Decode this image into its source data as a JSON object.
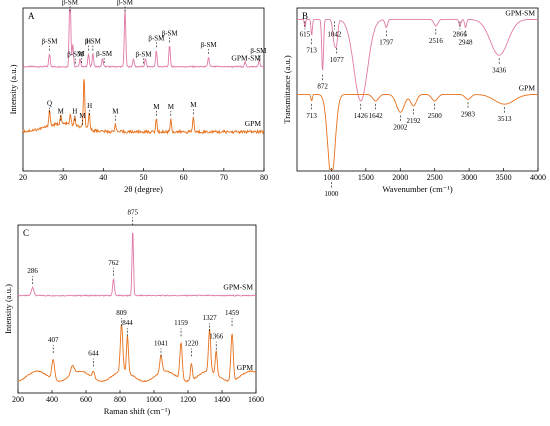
{
  "chart_data": [
    {
      "panel": "A",
      "type": "line",
      "xlabel": "2θ (degree)",
      "ylabel": "Intensity (a.u.)",
      "xlim": [
        20,
        80
      ],
      "xticks": [
        20,
        30,
        40,
        50,
        60,
        70,
        80
      ],
      "colors": {
        "GPM-SM": "#e07aa8",
        "GPM": "#e8701a"
      },
      "series": [
        {
          "name": "GPM-SM",
          "baseline": 0.64,
          "peaks": [
            [
              26.6,
              0.08
            ],
            [
              31.7,
              0.58
            ],
            [
              32.4,
              0.14
            ],
            [
              34.2,
              0.05
            ],
            [
              36.3,
              0.08
            ],
            [
              37.4,
              0.08
            ],
            [
              39.8,
              0.05
            ],
            [
              45.4,
              0.38
            ],
            [
              47.5,
              0.05
            ],
            [
              50.5,
              0.05
            ],
            [
              53.2,
              0.1
            ],
            [
              56.5,
              0.13
            ],
            [
              66.2,
              0.06
            ],
            [
              75.3,
              0.03
            ],
            [
              78.8,
              0.04
            ]
          ]
        },
        {
          "name": "GPM",
          "baseline": 0.24,
          "peaks": [
            [
              26.6,
              0.1
            ],
            [
              29.4,
              0.05
            ],
            [
              31.8,
              0.06
            ],
            [
              32.9,
              0.05
            ],
            [
              35.2,
              0.31
            ],
            [
              36.5,
              0.1
            ],
            [
              43.0,
              0.05
            ],
            [
              53.2,
              0.08
            ],
            [
              56.8,
              0.08
            ],
            [
              62.4,
              0.09
            ]
          ]
        }
      ],
      "annotations": [
        {
          "x": 26.6,
          "label": "β-SM",
          "s": 0
        },
        {
          "x": 31.7,
          "label": "β-SM",
          "s": 0
        },
        {
          "x": 33.0,
          "label": "β-SM",
          "s": 0
        },
        {
          "x": 34.6,
          "label": "M",
          "s": 0
        },
        {
          "x": 36.3,
          "label": "H",
          "s": 0
        },
        {
          "x": 37.4,
          "label": "β-SM",
          "s": 0
        },
        {
          "x": 40.2,
          "label": "β-SM",
          "s": 0
        },
        {
          "x": 45.4,
          "label": "β-SM",
          "s": 0
        },
        {
          "x": 50.0,
          "label": "β-SM",
          "s": 0
        },
        {
          "x": 53.2,
          "label": "β-SM",
          "s": 0
        },
        {
          "x": 56.5,
          "label": "β-SM",
          "s": 0
        },
        {
          "x": 66.2,
          "label": "β-SM",
          "s": 0
        },
        {
          "x": 78.6,
          "label": "β-SM",
          "s": 0
        },
        {
          "x": 26.6,
          "label": "Q",
          "s": 1
        },
        {
          "x": 29.4,
          "label": "M",
          "s": 1
        },
        {
          "x": 32.9,
          "label": "H",
          "s": 1
        },
        {
          "x": 34.8,
          "label": "M",
          "s": 1
        },
        {
          "x": 36.6,
          "label": "H",
          "s": 1
        },
        {
          "x": 43.0,
          "label": "M",
          "s": 1
        },
        {
          "x": 53.2,
          "label": "M",
          "s": 1
        },
        {
          "x": 56.8,
          "label": "M",
          "s": 1
        },
        {
          "x": 62.4,
          "label": "M",
          "s": 1
        }
      ]
    },
    {
      "panel": "B",
      "type": "line",
      "xlabel": "Wavenumber (cm⁻¹)",
      "ylabel": "Transmittance (a.u.)",
      "xlim": [
        500,
        4000
      ],
      "xticks": [
        1000,
        1500,
        2000,
        2500,
        3000,
        3500,
        4000
      ],
      "colors": {
        "GPM-SM": "#e07aa8",
        "GPM": "#e8701a"
      },
      "series": [
        {
          "name": "GPM-SM",
          "baseline": 0.93,
          "dips": [
            [
              615,
              0.05,
              12
            ],
            [
              713,
              0.1,
              14
            ],
            [
              872,
              0.32,
              18
            ],
            [
              1042,
              0.14,
              30
            ],
            [
              1077,
              0.12,
              25
            ],
            [
              1426,
              0.5,
              140
            ],
            [
              1797,
              0.05,
              25
            ],
            [
              2516,
              0.04,
              40
            ],
            [
              2866,
              0.04,
              20
            ],
            [
              2948,
              0.05,
              20
            ],
            [
              3436,
              0.22,
              180
            ]
          ]
        },
        {
          "name": "GPM",
          "baseline": 0.47,
          "dips": [
            [
              713,
              0.04,
              15
            ],
            [
              1000,
              0.52,
              75
            ],
            [
              1642,
              0.04,
              60
            ],
            [
              2002,
              0.11,
              80
            ],
            [
              2192,
              0.07,
              60
            ],
            [
              2500,
              0.04,
              60
            ],
            [
              2983,
              0.03,
              60
            ],
            [
              3513,
              0.06,
              200
            ]
          ]
        }
      ],
      "annotations": [
        {
          "x": 615,
          "label": "615",
          "s": 0,
          "dir": "up"
        },
        {
          "x": 713,
          "label": "713",
          "s": 0,
          "dir": "down"
        },
        {
          "x": 872,
          "label": "872",
          "s": 0,
          "dir": "down"
        },
        {
          "x": 1042,
          "label": "1042",
          "s": 0,
          "dir": "up"
        },
        {
          "x": 1077,
          "label": "1077",
          "s": 0,
          "dir": "down"
        },
        {
          "x": 1426,
          "label": "1426",
          "s": 0,
          "dir": "down"
        },
        {
          "x": 1797,
          "label": "1797",
          "s": 0,
          "dir": "down"
        },
        {
          "x": 2516,
          "label": "2516",
          "s": 0,
          "dir": "down"
        },
        {
          "x": 2866,
          "label": "2866",
          "s": 0,
          "dir": "up"
        },
        {
          "x": 2948,
          "label": "2948",
          "s": 0,
          "dir": "down"
        },
        {
          "x": 3436,
          "label": "3436",
          "s": 0,
          "dir": "down"
        },
        {
          "x": 713,
          "label": "713",
          "s": 1,
          "dir": "down"
        },
        {
          "x": 1000,
          "label": "1000",
          "s": 1,
          "dir": "down"
        },
        {
          "x": 1642,
          "label": "1642",
          "s": 1,
          "dir": "down"
        },
        {
          "x": 2002,
          "label": "2002",
          "s": 1,
          "dir": "down"
        },
        {
          "x": 2192,
          "label": "2192",
          "s": 1,
          "dir": "down"
        },
        {
          "x": 2500,
          "label": "2500",
          "s": 1,
          "dir": "down"
        },
        {
          "x": 2983,
          "label": "2983",
          "s": 1,
          "dir": "down"
        },
        {
          "x": 3513,
          "label": "3513",
          "s": 1,
          "dir": "down"
        }
      ]
    },
    {
      "panel": "C",
      "type": "line",
      "xlabel": "Raman shift (cm⁻¹)",
      "ylabel": "Intensity (a.u.)",
      "xlim": [
        200,
        1600
      ],
      "xticks": [
        200,
        400,
        600,
        800,
        1000,
        1200,
        1400,
        1600
      ],
      "colors": {
        "GPM-SM": "#e07aa8",
        "GPM": "#e8701a"
      },
      "series": [
        {
          "name": "GPM-SM",
          "baseline": 0.58,
          "peaks": [
            [
              286,
              0.05,
              10
            ],
            [
              762,
              0.1,
              7
            ],
            [
              875,
              0.4,
              6
            ]
          ]
        },
        {
          "name": "GPM",
          "baseline": 0.1,
          "peaks": [
            [
              407,
              0.12,
              12
            ],
            [
              520,
              0.05,
              15
            ],
            [
              644,
              0.04,
              10
            ],
            [
              809,
              0.28,
              10
            ],
            [
              844,
              0.22,
              8
            ],
            [
              1041,
              0.1,
              10
            ],
            [
              1159,
              0.22,
              10
            ],
            [
              1220,
              0.1,
              8
            ],
            [
              1327,
              0.25,
              9
            ],
            [
              1366,
              0.14,
              8
            ],
            [
              1459,
              0.28,
              10
            ]
          ]
        }
      ],
      "annotations": [
        {
          "x": 286,
          "label": "286",
          "s": 0
        },
        {
          "x": 762,
          "label": "762",
          "s": 0
        },
        {
          "x": 875,
          "label": "875",
          "s": 0
        },
        {
          "x": 407,
          "label": "407",
          "s": 1
        },
        {
          "x": 644,
          "label": "644",
          "s": 1
        },
        {
          "x": 809,
          "label": "809",
          "s": 1
        },
        {
          "x": 844,
          "label": "844",
          "s": 1
        },
        {
          "x": 1041,
          "label": "1041",
          "s": 1
        },
        {
          "x": 1159,
          "label": "1159",
          "s": 1
        },
        {
          "x": 1220,
          "label": "1220",
          "s": 1
        },
        {
          "x": 1327,
          "label": "1327",
          "s": 1
        },
        {
          "x": 1366,
          "label": "1366",
          "s": 1
        },
        {
          "x": 1459,
          "label": "1459",
          "s": 1
        }
      ]
    }
  ]
}
